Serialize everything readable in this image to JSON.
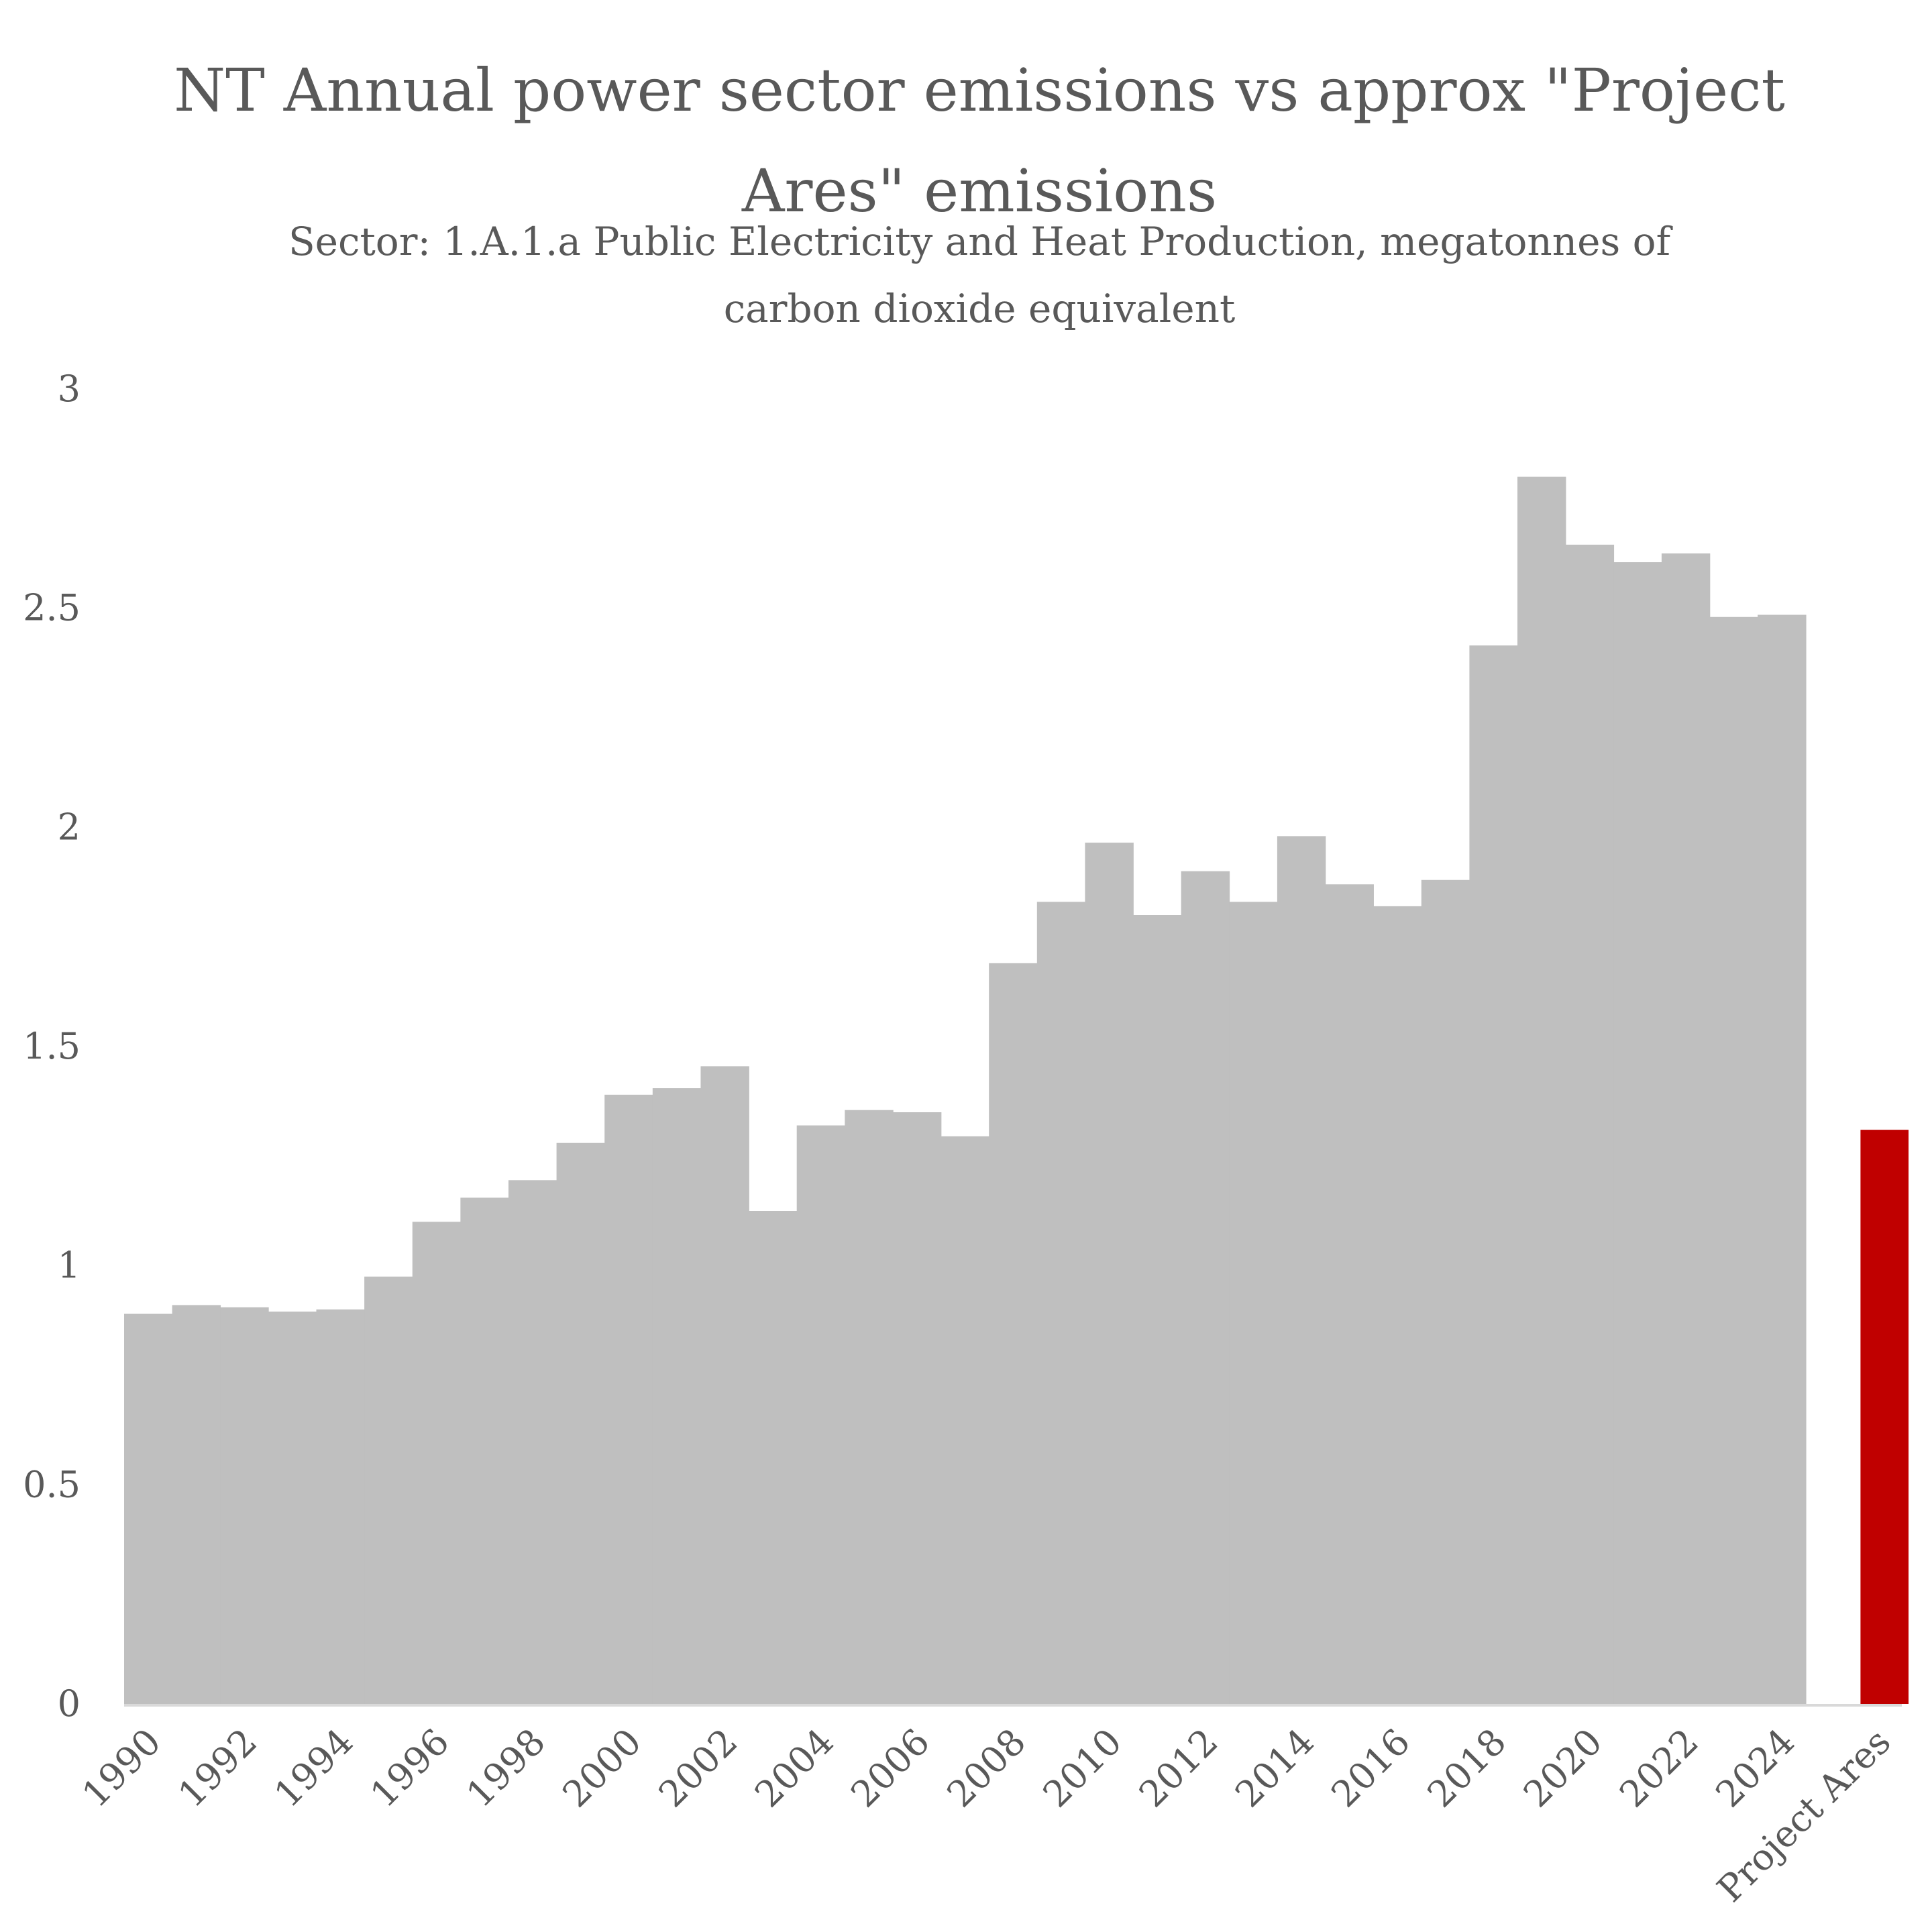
{
  "chart_data": {
    "type": "bar",
    "title": "NT Annual power sector emissions vs approx \"Project Ares\" emissions",
    "subtitle": "Sector: 1.A.1.a Public Electricity and Heat Production, megatonnes of carbon dioxide equivalent",
    "xlabel": "",
    "ylabel": "",
    "ylim": [
      0,
      3
    ],
    "yticks": [
      "0",
      "0.5",
      "1",
      "1.5",
      "2",
      "2.5",
      "3"
    ],
    "grid": false,
    "legend": "none",
    "categories": [
      "1990",
      "1991",
      "1992",
      "1993",
      "1994",
      "1995",
      "1996",
      "1997",
      "1998",
      "1999",
      "2000",
      "2001",
      "2002",
      "2003",
      "2004",
      "2005",
      "2006",
      "2007",
      "2008",
      "2009",
      "2010",
      "2011",
      "2012",
      "2013",
      "2014",
      "2015",
      "2016",
      "2017",
      "2018",
      "2019",
      "2020",
      "2021",
      "2022",
      "2023",
      "2024",
      "",
      "Project Ares"
    ],
    "xtick_labels": [
      "1990",
      "1992",
      "1994",
      "1996",
      "1998",
      "2000",
      "2002",
      "2004",
      "2006",
      "2008",
      "2010",
      "2012",
      "2014",
      "2016",
      "2018",
      "2020",
      "2022",
      "2024",
      "Project Ares"
    ],
    "values": [
      0.89,
      0.91,
      0.905,
      0.895,
      0.9,
      0.975,
      1.1,
      1.155,
      1.195,
      1.28,
      1.39,
      1.405,
      1.455,
      1.125,
      1.32,
      1.355,
      1.35,
      1.295,
      1.69,
      1.83,
      1.965,
      1.8,
      1.9,
      1.83,
      1.98,
      1.87,
      1.82,
      1.88,
      2.415,
      2.8,
      2.645,
      2.605,
      2.625,
      2.48,
      2.485,
      null,
      1.31
    ],
    "colors": {
      "historical": "#bfbfbf",
      "project_ares": "#c00000",
      "axis": "#d9d9d9",
      "text": "#595959"
    }
  }
}
